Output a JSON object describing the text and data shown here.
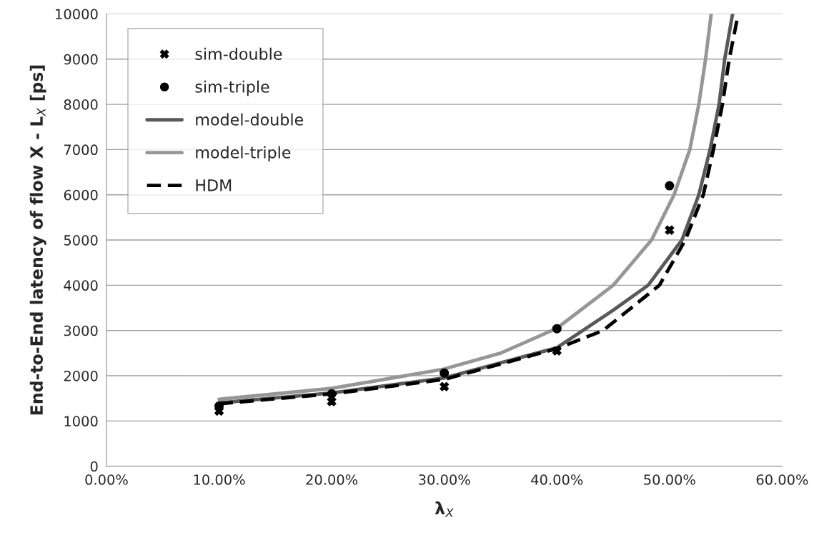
{
  "chart_data": {
    "type": "line",
    "xlabel": "λ$_{X}$",
    "ylabel": "End-to-End latency of flow X - L$_{X}$ [ps]",
    "xlim": [
      0,
      0.6
    ],
    "xticks": [
      {
        "value": 0,
        "label": "0.00%"
      },
      {
        "value": 0.1,
        "label": "10.00%"
      },
      {
        "value": 0.2,
        "label": "20.00%"
      },
      {
        "value": 0.3,
        "label": "30.00%"
      },
      {
        "value": 0.4,
        "label": "40.00%"
      },
      {
        "value": 0.5,
        "label": "50.00%"
      },
      {
        "value": 0.6,
        "label": "60.00%"
      }
    ],
    "ylim": [
      0,
      10000
    ],
    "yticks": [
      0,
      1000,
      2000,
      3000,
      4000,
      5000,
      6000,
      7000,
      8000,
      9000,
      10000
    ],
    "grid": "y",
    "legend": "top left",
    "series": [
      {
        "name": "sim-double",
        "type": "scatter",
        "marker": "cross",
        "color": "#000000",
        "x": [
          0.1,
          0.2,
          0.3,
          0.4,
          0.5
        ],
        "values": [
          1220,
          1430,
          1760,
          2550,
          5220
        ]
      },
      {
        "name": "sim-triple",
        "type": "scatter",
        "marker": "circle",
        "color": "#000000",
        "x": [
          0.1,
          0.2,
          0.3,
          0.4,
          0.5
        ],
        "values": [
          1330,
          1600,
          2060,
          3040,
          6200
        ]
      },
      {
        "name": "model-double",
        "line_style": "solid",
        "color": "#595959",
        "x": [
          0.1,
          0.2,
          0.3,
          0.4,
          0.423,
          0.45,
          0.481,
          0.511,
          0.526,
          0.536,
          0.544,
          0.549,
          0.556
        ],
        "values": [
          1400,
          1620,
          1950,
          2620,
          3000,
          3450,
          4000,
          5000,
          6000,
          7000,
          8000,
          9000,
          10000
        ]
      },
      {
        "name": "model-triple",
        "line_style": "solid",
        "color": "#969696",
        "x": [
          0.1,
          0.2,
          0.3,
          0.35,
          0.4,
          0.45,
          0.484,
          0.504,
          0.518,
          0.526,
          0.532,
          0.537
        ],
        "values": [
          1480,
          1720,
          2150,
          2500,
          3050,
          4000,
          5000,
          6000,
          7000,
          8000,
          9000,
          10000
        ]
      },
      {
        "name": "HDM",
        "line_style": "dashed",
        "color": "#000000",
        "x": [
          0.1,
          0.2,
          0.3,
          0.4,
          0.441,
          0.491,
          0.514,
          0.53,
          0.539,
          0.547,
          0.553,
          0.561
        ],
        "values": [
          1380,
          1600,
          1920,
          2600,
          3000,
          4000,
          5000,
          6000,
          7000,
          8000,
          9000,
          10000
        ]
      }
    ]
  }
}
